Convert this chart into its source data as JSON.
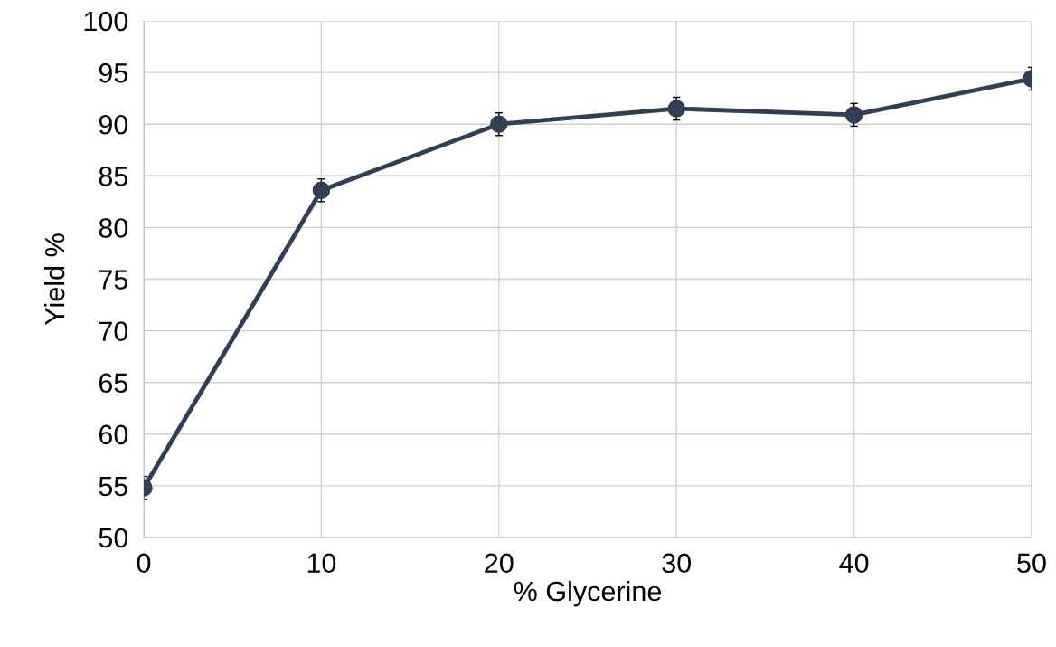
{
  "chart_data": {
    "type": "line",
    "xlabel": "% Glycerine",
    "ylabel": "Yield %",
    "x": [
      0,
      10,
      20,
      30,
      40,
      50
    ],
    "series": [
      {
        "color": "#323e53",
        "values": [
          54.8,
          83.6,
          90.0,
          91.5,
          90.9,
          94.4
        ],
        "errors": [
          1.1,
          1.1,
          1.1,
          1.1,
          1.1,
          1.1
        ]
      }
    ],
    "xlim": [
      0,
      50
    ],
    "xticks": [
      0,
      10,
      20,
      30,
      40,
      50
    ],
    "ylim": [
      50,
      100
    ],
    "yticks": [
      50,
      55,
      60,
      65,
      70,
      75,
      80,
      85,
      90,
      95,
      100
    ],
    "grid": true,
    "marker": "circle",
    "line_style": "solid"
  }
}
